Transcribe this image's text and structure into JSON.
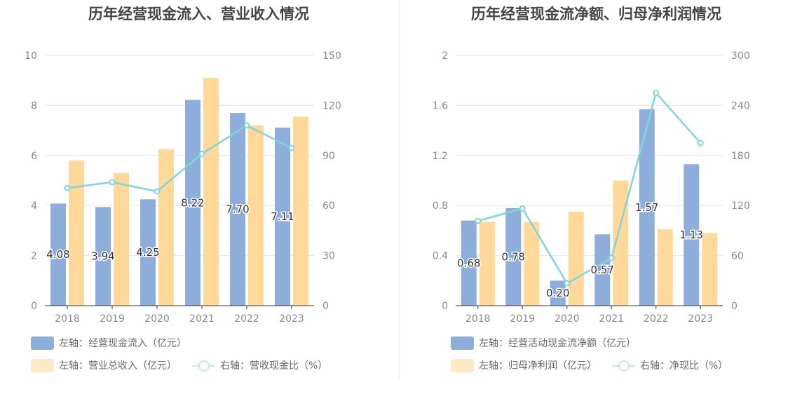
{
  "colors": {
    "bar1": "#8daddb",
    "bar2": "#ffd89a",
    "line": "#7fd5d9",
    "grid": "#e3e6f0",
    "axis": "#333333",
    "tick": "#888888"
  },
  "charts": [
    {
      "title": "历年经营现金流入、营业收入情况",
      "legend": {
        "bar1": "左轴：经营现金流入（亿元）",
        "bar2": "左轴：营业总收入（亿元）",
        "line": "右轴：营收现金比（%）"
      }
    },
    {
      "title": "历年经营现金流净额、归母净利润情况",
      "legend": {
        "bar1": "左轴：经营活动现金流净额（亿元）",
        "bar2": "左轴：归母净利润（亿元）",
        "line": "右轴：净现比（%）"
      }
    }
  ],
  "chart_data": [
    {
      "type": "bar",
      "title": "历年经营现金流入、营业收入情况",
      "categories": [
        "2018",
        "2019",
        "2020",
        "2021",
        "2022",
        "2023"
      ],
      "left_axis": {
        "ylim": [
          0,
          10
        ],
        "ticks": [
          "0",
          "2",
          "4",
          "6",
          "8",
          "10"
        ],
        "tick_values": [
          0,
          2,
          4,
          6,
          8,
          10
        ]
      },
      "right_axis": {
        "ylim": [
          0,
          150
        ],
        "ticks": [
          "0",
          "30",
          "60",
          "90",
          "120",
          "150"
        ],
        "tick_values": [
          0,
          30,
          60,
          90,
          120,
          150
        ]
      },
      "series": [
        {
          "name": "左轴：经营现金流入（亿元）",
          "kind": "bar",
          "axis": "left",
          "values": [
            4.08,
            3.94,
            4.25,
            8.22,
            7.7,
            7.11
          ],
          "labels": [
            "4.08",
            "3.94",
            "4.25",
            "8.22",
            "7.70",
            "7.11"
          ]
        },
        {
          "name": "左轴：营业总收入（亿元）",
          "kind": "bar",
          "axis": "left",
          "values": [
            5.8,
            5.3,
            6.25,
            9.1,
            7.2,
            7.55
          ]
        },
        {
          "name": "右轴：营收现金比（%）",
          "kind": "line",
          "axis": "right",
          "values": [
            70.5,
            74,
            68.5,
            91,
            108,
            94.5
          ]
        }
      ],
      "grid": true,
      "legend_position": "bottom-left"
    },
    {
      "type": "bar",
      "title": "历年经营现金流净额、归母净利润情况",
      "categories": [
        "2018",
        "2019",
        "2020",
        "2021",
        "2022",
        "2023"
      ],
      "left_axis": {
        "ylim": [
          0,
          2
        ],
        "ticks": [
          "0",
          "0.4",
          "0.8",
          "1.2",
          "1.6",
          "2"
        ],
        "tick_values": [
          0,
          0.4,
          0.8,
          1.2,
          1.6,
          2
        ]
      },
      "right_axis": {
        "ylim": [
          0,
          300
        ],
        "ticks": [
          "0",
          "60",
          "120",
          "180",
          "240",
          "300"
        ],
        "tick_values": [
          0,
          60,
          120,
          180,
          240,
          300
        ]
      },
      "series": [
        {
          "name": "左轴：经营活动现金流净额（亿元）",
          "kind": "bar",
          "axis": "left",
          "values": [
            0.68,
            0.78,
            0.2,
            0.57,
            1.57,
            1.13
          ],
          "labels": [
            "0.68",
            "0.78",
            "0.20",
            "0.57",
            "1.57",
            "1.13"
          ]
        },
        {
          "name": "左轴：归母净利润（亿元）",
          "kind": "bar",
          "axis": "left",
          "values": [
            0.67,
            0.67,
            0.75,
            1.0,
            0.61,
            0.58
          ]
        },
        {
          "name": "右轴：净现比（%）",
          "kind": "line",
          "axis": "right",
          "values": [
            101.5,
            116.5,
            26.7,
            57,
            255,
            195
          ]
        }
      ],
      "grid": true,
      "legend_position": "bottom-left"
    }
  ]
}
